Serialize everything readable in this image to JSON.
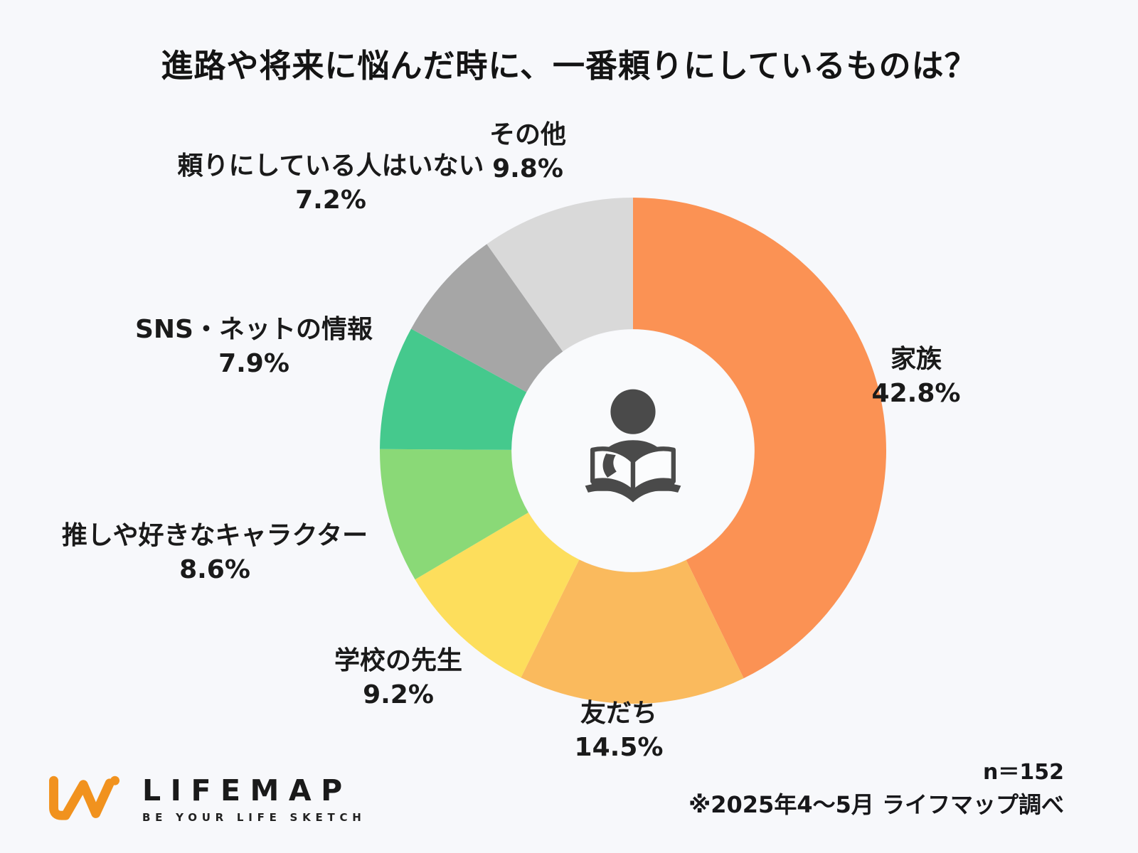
{
  "title": "進路や将来に悩んだ時に、一番頼りにしているものは？",
  "chart_data": {
    "type": "pie",
    "subtype": "donut",
    "title": "進路や将来に悩んだ時に、一番頼りにしているものは？",
    "start_angle_deg": 0,
    "direction": "clockwise",
    "hole_radius_ratio": 0.48,
    "legend_position": "labels-around-donut",
    "segments": [
      {
        "label": "家族",
        "value": 42.8,
        "display": "42.8%",
        "color": "#FB9254"
      },
      {
        "label": "友だち",
        "value": 14.5,
        "display": "14.5%",
        "color": "#FABA5D"
      },
      {
        "label": "学校の先生",
        "value": 9.2,
        "display": "9.2%",
        "color": "#FDDE5C"
      },
      {
        "label": "推しや好きなキャラクター",
        "value": 8.6,
        "display": "8.6%",
        "color": "#8AD977"
      },
      {
        "label": "SNS・ネットの情報",
        "value": 7.9,
        "display": "7.9%",
        "color": "#45C98D"
      },
      {
        "label": "頼りにしている人はいない",
        "value": 7.2,
        "display": "7.2%",
        "color": "#A6A6A6"
      },
      {
        "label": "その他",
        "value": 9.8,
        "display": "9.8%",
        "color": "#D9D9D9"
      }
    ],
    "center_icon": "person-reading-book",
    "sample_size": "n＝152",
    "source_note": "※2025年4〜5月 ライフマップ調べ"
  },
  "footer": {
    "note_line1": "n＝152",
    "note_line2": "※2025年4〜5月 ライフマップ調べ",
    "logo_name": "LIFEMAP",
    "logo_tagline": "BE YOUR LIFE SKETCH"
  },
  "colors": {
    "background": "#F7F8FB",
    "text": "#1C1C1C",
    "icon": "#4A4A4A",
    "hole": "#F9FAFC",
    "logo": "#F1921E"
  }
}
